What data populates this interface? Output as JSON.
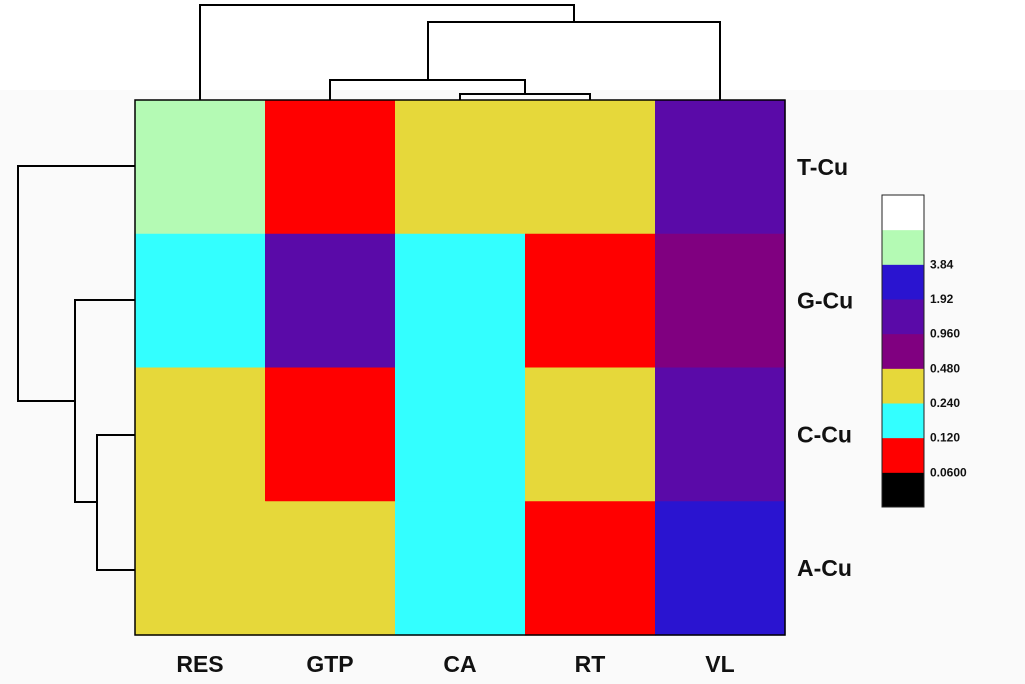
{
  "chart_data": {
    "type": "heatmap",
    "x_labels": [
      "RES",
      "GTP",
      "CA",
      "RT",
      "VL"
    ],
    "y_labels": [
      "T-Cu",
      "G-Cu",
      "C-Cu",
      "A-Cu"
    ],
    "matrix_bins": [
      [
        7,
        1,
        3,
        3,
        5
      ],
      [
        2,
        5,
        2,
        1,
        4
      ],
      [
        3,
        1,
        2,
        3,
        5
      ],
      [
        3,
        3,
        2,
        1,
        6
      ]
    ],
    "color_scale": {
      "colors": [
        "#000000",
        "#ff0000",
        "#33ffff",
        "#e6d83a",
        "#800080",
        "#5a0aa8",
        "#2a14d0",
        "#b4fab4",
        "#ffffff"
      ],
      "tick_labels": [
        "0.0600",
        "0.120",
        "0.240",
        "0.480",
        "0.960",
        "1.92",
        "3.84"
      ]
    },
    "dendrogram": {
      "columns": "top",
      "rows": "left"
    },
    "grid": false
  }
}
